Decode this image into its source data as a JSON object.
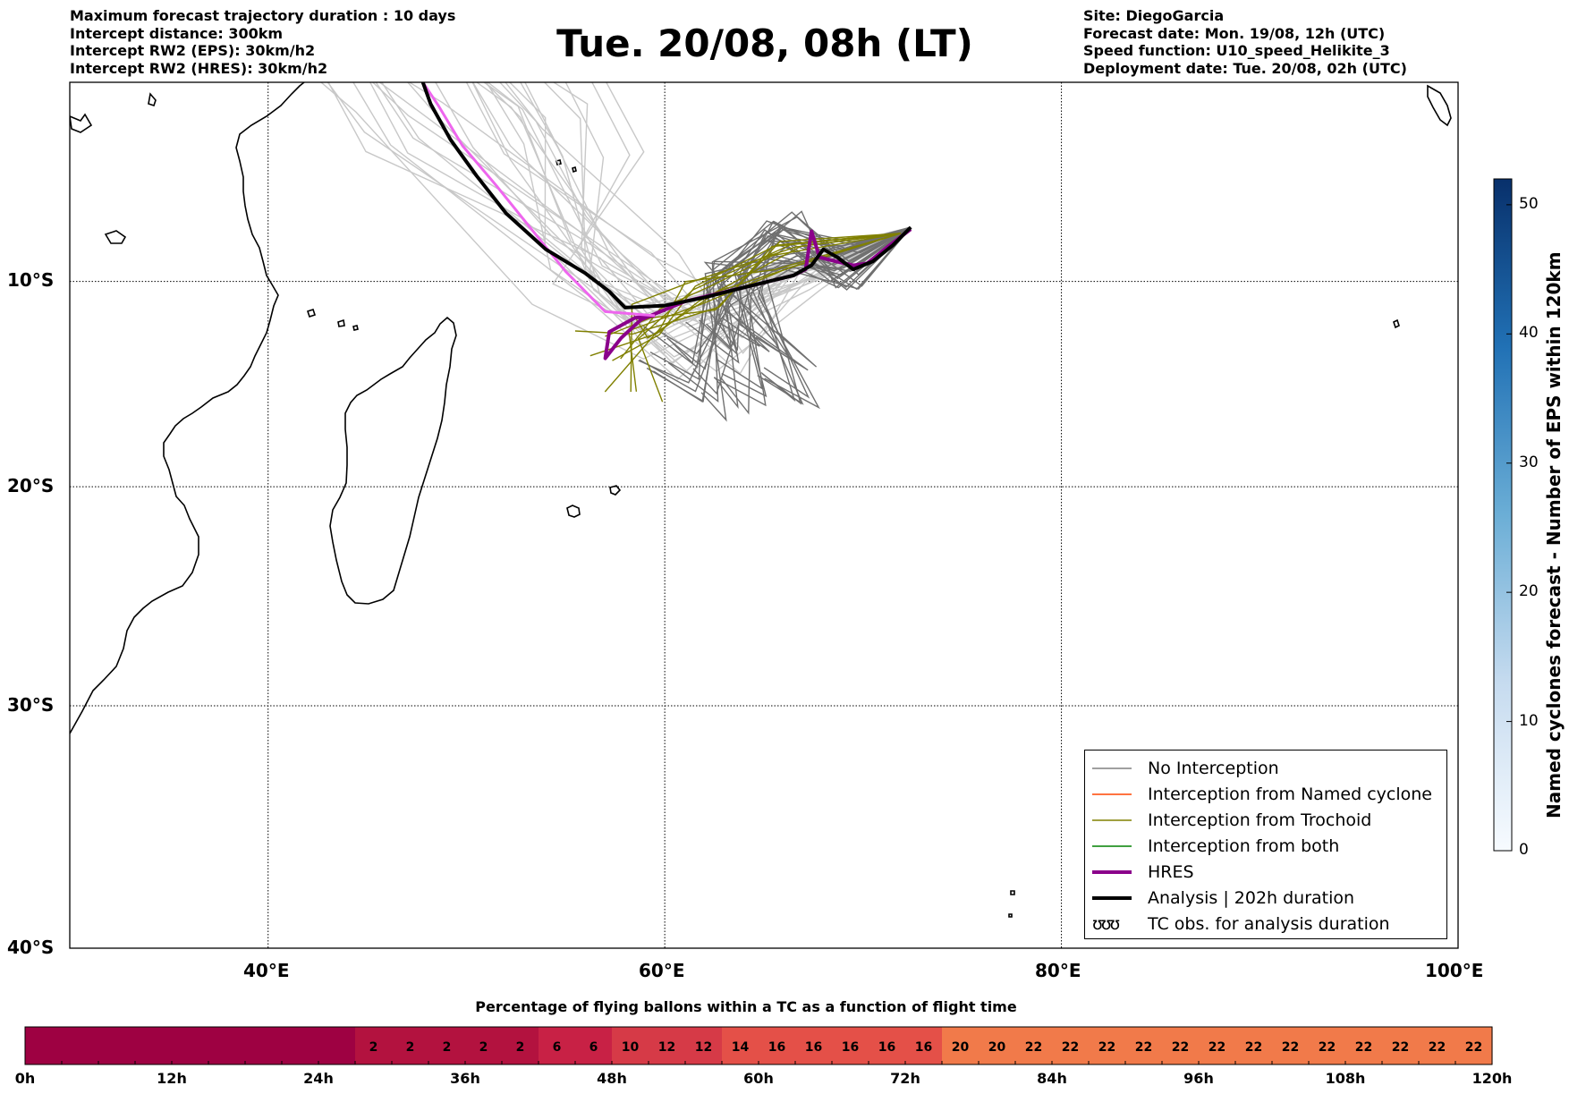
{
  "header_left": [
    "Maximum forecast trajectory duration : 10 days",
    "Intercept distance: 300km",
    "Intercept RW2 (EPS):  30km/h2",
    "Intercept RW2 (HRES): 30km/h2"
  ],
  "header_title": "Tue. 20/08, 08h (LT)",
  "header_right": [
    "Site: DiegoGarcia",
    "Forecast date: Mon. 19/08, 12h (UTC)",
    "Speed function: U10_speed_Helikite_3",
    "Deployment date: Tue. 20/08, 02h (UTC)"
  ],
  "chart_data": [
    {
      "type": "line",
      "lon_ticks": [
        "40°E",
        "60°E",
        "80°E",
        "100°E"
      ],
      "lat_ticks": [
        "10°S",
        "20°S",
        "30°S",
        "40°S"
      ],
      "lon_range": [
        30,
        100
      ],
      "lat_range": [
        -40,
        0
      ],
      "grid": true,
      "legend_position": "bottom-right",
      "legend": [
        {
          "label": "No Interception",
          "color": "#808080",
          "width": 1.5
        },
        {
          "label": "Interception from Named cyclone",
          "color": "#ff4500",
          "width": 1.5
        },
        {
          "label": "Interception from Trochoid",
          "color": "#808000",
          "width": 1.5
        },
        {
          "label": "Interception from both",
          "color": "#008000",
          "width": 1.5
        },
        {
          "label": "HRES",
          "color": "#8b008b",
          "width": 4
        },
        {
          "label": "Analysis | 202h duration",
          "color": "#000000",
          "width": 4
        },
        {
          "label": "TC obs. for analysis duration",
          "symbol": "ʊʊʊ"
        }
      ],
      "launch_site": [
        72.4,
        -7.3
      ],
      "series": [
        {
          "name": "HRES",
          "color": "#8b008b",
          "x": [
            72.4,
            71.2,
            70.2,
            69.5,
            68.6,
            67.8,
            67.4,
            67.1,
            66.5,
            64.0,
            61.0,
            58.8,
            57.8,
            57.0,
            57.2,
            58.5,
            59.5
          ],
          "y": [
            -7.4,
            -8.3,
            -9.1,
            -9.2,
            -9.0,
            -8.8,
            -7.5,
            -9.4,
            -9.7,
            -10.3,
            -11.0,
            -11.9,
            -12.8,
            -13.8,
            -12.5,
            -11.8,
            -11.7
          ]
        },
        {
          "name": "HRES (continued)",
          "color": "#ee66ee",
          "x": [
            59.5,
            57.0,
            55.0,
            53.2,
            51.5,
            49.8,
            48.6,
            47.8
          ],
          "y": [
            -11.7,
            -11.5,
            -9.5,
            -7.3,
            -5.2,
            -3.2,
            -1.2,
            0.0
          ]
        },
        {
          "name": "Analysis | 202h duration",
          "color": "#000000",
          "x": [
            72.4,
            71.5,
            70.5,
            69.5,
            68.7,
            68.0,
            67.4,
            66.5,
            64.0,
            62.0,
            60.0,
            58.0,
            57.2,
            56.0,
            54.0,
            52.0,
            50.5,
            49.2,
            48.2,
            47.8
          ],
          "y": [
            -7.3,
            -8.2,
            -9.0,
            -9.4,
            -8.8,
            -8.4,
            -9.2,
            -9.7,
            -10.3,
            -10.8,
            -11.2,
            -11.3,
            -10.5,
            -9.6,
            -8.4,
            -6.6,
            -4.7,
            -2.9,
            -1.1,
            0.0
          ]
        }
      ]
    },
    {
      "type": "heatmap",
      "title": "Named cyclones forecast - Number of EPS within 120km",
      "range": [
        0,
        52
      ],
      "ticks": [
        "0",
        "10",
        "20",
        "30",
        "40",
        "50"
      ],
      "colormap": "Blues"
    },
    {
      "type": "heatmap",
      "title": "Percentage of flying ballons within a TC as a function of flight time",
      "x_ticks": [
        "0h",
        "12h",
        "24h",
        "36h",
        "48h",
        "60h",
        "72h",
        "84h",
        "96h",
        "108h",
        "120h"
      ],
      "hours": [
        3,
        6,
        9,
        12,
        15,
        18,
        21,
        24,
        27,
        30,
        33,
        36,
        39,
        42,
        45,
        48,
        51,
        54,
        57,
        60,
        63,
        66,
        69,
        72,
        75,
        78,
        81,
        84,
        87,
        90,
        93,
        96,
        99,
        102,
        105,
        108,
        111,
        114,
        117,
        120
      ],
      "values": [
        0,
        0,
        0,
        0,
        0,
        0,
        0,
        0,
        0,
        2,
        2,
        2,
        2,
        2,
        6,
        6,
        10,
        12,
        12,
        14,
        16,
        16,
        16,
        16,
        16,
        20,
        20,
        22,
        22,
        22,
        22,
        22,
        22,
        22,
        22,
        22,
        22,
        22,
        22,
        22
      ],
      "labels": [
        "",
        "",
        "",
        "",
        "",
        "",
        "",
        "",
        "",
        "2",
        "2",
        "2",
        "2",
        "2",
        "6",
        "6",
        "10",
        "12",
        "12",
        "14",
        "16",
        "16",
        "16",
        "16",
        "16",
        "20",
        "20",
        "22",
        "22",
        "22",
        "22",
        "22",
        "22",
        "22",
        "22",
        "22",
        "22",
        "22",
        "22",
        "22"
      ]
    }
  ]
}
